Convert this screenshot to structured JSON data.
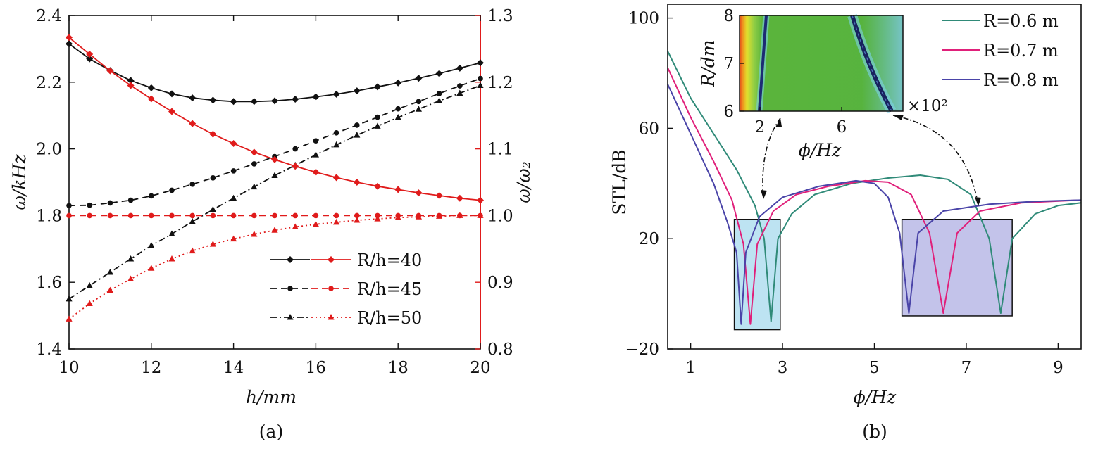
{
  "chart_data": [
    {
      "type": "line",
      "panel_label": "(a)",
      "xlabel": "h/mm",
      "ylabel": "ω/kHz",
      "ylabel_right": "ω/ω₂",
      "xlim": [
        10,
        20
      ],
      "ylim": [
        1.4,
        2.4
      ],
      "ylim_right": [
        0.8,
        1.3
      ],
      "x_ticks": [
        "10",
        "12",
        "14",
        "16",
        "18",
        "20"
      ],
      "y_ticks": [
        "1.4",
        "1.6",
        "1.8",
        "2.0",
        "2.2",
        "2.4"
      ],
      "y_ticks_right": [
        "0.8",
        "0.9",
        "1.0",
        "1.1",
        "1.2",
        "1.3"
      ],
      "legend_placement": "lower-right",
      "legend": [
        "R/h=40",
        "R/h=45",
        "R/h=50"
      ],
      "x": [
        10,
        10.5,
        11,
        11.5,
        12,
        12.5,
        13,
        13.5,
        14,
        14.5,
        15,
        15.5,
        16,
        16.5,
        17,
        17.5,
        18,
        18.5,
        19,
        19.5,
        20
      ],
      "series": [
        {
          "axis": "left",
          "color": "#111111",
          "dash": "solid",
          "marker": "diamond",
          "values": [
            2.315,
            2.27,
            2.235,
            2.205,
            2.183,
            2.165,
            2.153,
            2.146,
            2.142,
            2.142,
            2.144,
            2.149,
            2.156,
            2.164,
            2.174,
            2.186,
            2.198,
            2.212,
            2.226,
            2.242,
            2.258
          ]
        },
        {
          "axis": "left",
          "color": "#111111",
          "dash": "dashed",
          "marker": "circle",
          "values": [
            1.83,
            1.831,
            1.838,
            1.846,
            1.859,
            1.876,
            1.894,
            1.913,
            1.934,
            1.955,
            1.977,
            2.0,
            2.024,
            2.048,
            2.071,
            2.095,
            2.12,
            2.142,
            2.166,
            2.189,
            2.211
          ]
        },
        {
          "axis": "left",
          "color": "#111111",
          "dash": "dashdot",
          "marker": "triangle",
          "values": [
            1.55,
            1.59,
            1.63,
            1.67,
            1.71,
            1.745,
            1.782,
            1.818,
            1.852,
            1.886,
            1.92,
            1.951,
            1.982,
            2.012,
            2.041,
            2.068,
            2.094,
            2.119,
            2.144,
            2.167,
            2.19
          ]
        },
        {
          "axis": "right",
          "color": "#e01b1b",
          "dash": "solid",
          "marker": "diamond",
          "values": [
            1.267,
            1.242,
            1.217,
            1.195,
            1.175,
            1.156,
            1.138,
            1.122,
            1.108,
            1.095,
            1.084,
            1.074,
            1.065,
            1.057,
            1.05,
            1.044,
            1.039,
            1.034,
            1.03,
            1.026,
            1.023
          ]
        },
        {
          "axis": "right",
          "color": "#e01b1b",
          "dash": "dashed",
          "marker": "circle",
          "values": [
            1.0,
            1.0,
            1.0,
            1.0,
            1.0,
            1.0,
            1.0,
            1.0,
            1.0,
            1.0,
            1.0,
            1.0,
            1.0,
            1.0,
            1.0,
            1.0,
            1.0,
            1.0,
            1.0,
            1.0,
            1.0
          ]
        },
        {
          "axis": "right",
          "color": "#e01b1b",
          "dash": "dotted",
          "marker": "triangle",
          "values": [
            0.845,
            0.868,
            0.888,
            0.905,
            0.921,
            0.935,
            0.947,
            0.957,
            0.965,
            0.972,
            0.978,
            0.983,
            0.987,
            0.99,
            0.993,
            0.995,
            0.997,
            0.998,
            0.999,
            1.0,
            1.0
          ]
        }
      ]
    },
    {
      "type": "line",
      "panel_label": "(b)",
      "xlabel": "ϕ/Hz",
      "ylabel": "STL/dB",
      "xlim": [
        0.5,
        9.5
      ],
      "ylim": [
        -20,
        105
      ],
      "x_ticks": [
        "1",
        "3",
        "5",
        "7",
        "9"
      ],
      "y_ticks": [
        "−20",
        "20",
        "60",
        "100"
      ],
      "legend_placement": "top-right",
      "legend": [
        "R=0.6 m",
        "R=0.7 m",
        "R=0.8 m"
      ],
      "series": [
        {
          "color": "#2f8a78",
          "dips": [
            2.75,
            7.75
          ],
          "points": [
            [
              0.5,
              88
            ],
            [
              1.0,
              71
            ],
            [
              1.5,
              58
            ],
            [
              2.0,
              45
            ],
            [
              2.4,
              32
            ],
            [
              2.6,
              20
            ],
            [
              2.75,
              -10
            ],
            [
              2.9,
              20
            ],
            [
              3.2,
              29
            ],
            [
              3.7,
              36
            ],
            [
              4.5,
              40
            ],
            [
              5.3,
              42
            ],
            [
              6.0,
              43
            ],
            [
              6.6,
              41.5
            ],
            [
              7.1,
              36
            ],
            [
              7.5,
              20
            ],
            [
              7.75,
              -7
            ],
            [
              8.0,
              20
            ],
            [
              8.5,
              29
            ],
            [
              9.0,
              32
            ],
            [
              9.5,
              33
            ]
          ]
        },
        {
          "color": "#e0207a",
          "dips": [
            2.3,
            6.5
          ],
          "points": [
            [
              0.5,
              82
            ],
            [
              1.0,
              64
            ],
            [
              1.5,
              48
            ],
            [
              1.9,
              34
            ],
            [
              2.15,
              18
            ],
            [
              2.3,
              -11
            ],
            [
              2.45,
              18
            ],
            [
              2.8,
              30
            ],
            [
              3.3,
              36
            ],
            [
              4.0,
              39
            ],
            [
              4.8,
              41
            ],
            [
              5.3,
              40.5
            ],
            [
              5.8,
              36
            ],
            [
              6.2,
              22
            ],
            [
              6.5,
              -7
            ],
            [
              6.8,
              22
            ],
            [
              7.3,
              30
            ],
            [
              8.2,
              33
            ],
            [
              9.5,
              34
            ]
          ]
        },
        {
          "color": "#4a44a8",
          "dips": [
            2.1,
            5.75
          ],
          "points": [
            [
              0.5,
              76
            ],
            [
              1.0,
              58
            ],
            [
              1.5,
              40
            ],
            [
              1.8,
              26
            ],
            [
              2.0,
              15
            ],
            [
              2.1,
              -11
            ],
            [
              2.2,
              15
            ],
            [
              2.5,
              28
            ],
            [
              3.0,
              35
            ],
            [
              3.8,
              39
            ],
            [
              4.6,
              41
            ],
            [
              5.0,
              40
            ],
            [
              5.3,
              35
            ],
            [
              5.55,
              22
            ],
            [
              5.75,
              -7
            ],
            [
              5.95,
              22
            ],
            [
              6.5,
              30
            ],
            [
              7.5,
              32.5
            ],
            [
              8.5,
              33.5
            ],
            [
              9.5,
              34
            ]
          ]
        }
      ],
      "highlight_boxes": [
        {
          "x": [
            1.95,
            2.95
          ],
          "y": [
            -13,
            27
          ],
          "color": "#bde3f2"
        },
        {
          "x": [
            5.6,
            8.0
          ],
          "y": [
            -8,
            27
          ],
          "color": "#c3c3ea"
        }
      ],
      "inset": {
        "type": "heatmap",
        "xlabel": "ϕ/Hz",
        "ylabel": "R/dm",
        "x_ticks": [
          "2",
          "6"
        ],
        "y_ticks": [
          "6",
          "7",
          "8"
        ],
        "x_multiplier": "×10²",
        "xlim": [
          1,
          9
        ],
        "ylim": [
          6,
          8
        ]
      }
    }
  ]
}
